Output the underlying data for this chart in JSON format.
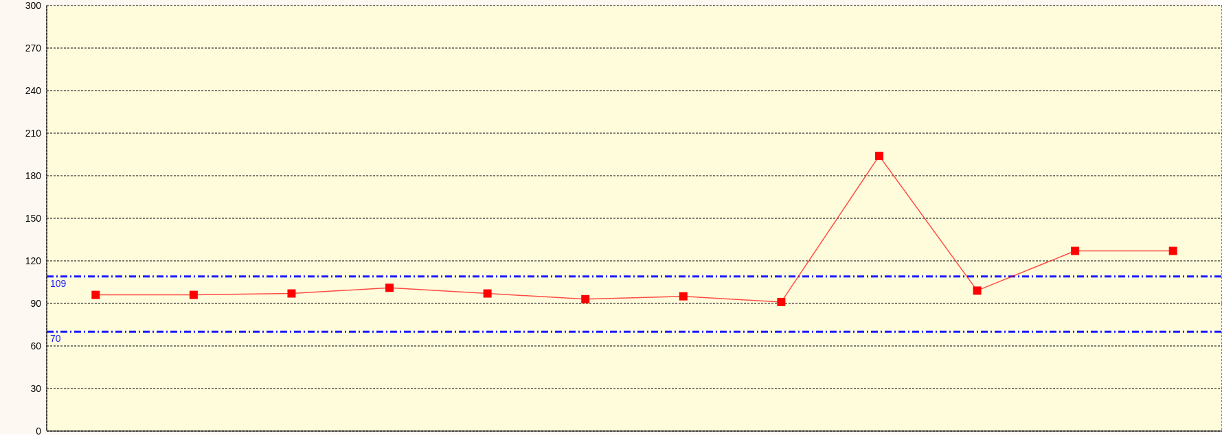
{
  "chart_data": {
    "type": "line",
    "categories": [
      null,
      null,
      null,
      null,
      null,
      null,
      null,
      null,
      null,
      null,
      null,
      null
    ],
    "series": [
      {
        "color": "#ff0000",
        "values": [
          96,
          96,
          97,
          101,
          97,
          93,
          95,
          91,
          194,
          99,
          127,
          127
        ]
      }
    ],
    "ylim": [
      0,
      300
    ],
    "yticks": [
      0,
      30,
      60,
      90,
      120,
      150,
      180,
      210,
      240,
      270,
      300
    ],
    "grid": true,
    "marker": "square",
    "line_style": "solid",
    "tick_labels": "y",
    "ref_lines": [
      {
        "axis": "y",
        "value": 109,
        "label": "109",
        "color": "#1a1aff",
        "line_style": "dashdot"
      },
      {
        "axis": "y",
        "value": 70,
        "label": "70",
        "color": "#1a1aff",
        "line_style": "dashdot"
      }
    ]
  }
}
